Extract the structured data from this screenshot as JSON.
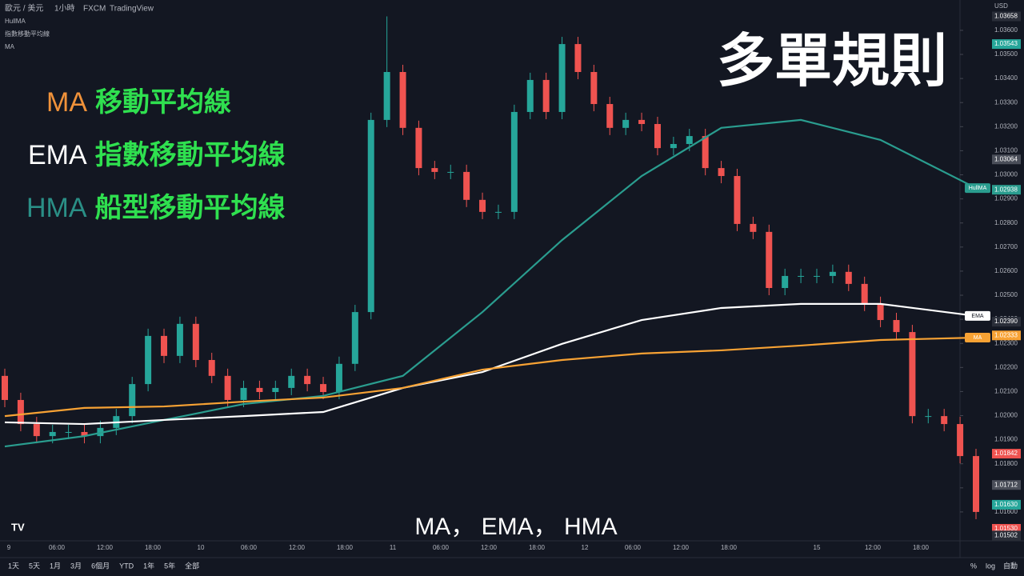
{
  "header": {
    "symbol": "歐元 / 美元",
    "interval": "1小時",
    "broker": "FXCM",
    "source": "TradingView",
    "legends": [
      "HullMA",
      "指數移動平均線",
      "MA"
    ],
    "currency": "USD"
  },
  "overlay": {
    "title": "多單規則",
    "rows": [
      {
        "abbr": "MA",
        "desc": "移動平均線",
        "color": "#f0923a"
      },
      {
        "abbr": "EMA",
        "desc": "指數移動平均線",
        "color": "#ffffff"
      },
      {
        "abbr": "HMA",
        "desc": "船型移動平均線",
        "color": "#2a8f86"
      }
    ],
    "desc_color": "#2fe04f",
    "subtitle": "MA， EMA， HMA"
  },
  "toolbar": {
    "ranges": [
      "1天",
      "5天",
      "1月",
      "3月",
      "6個月",
      "YTD",
      "1年",
      "5年",
      "全部"
    ],
    "options": [
      "%",
      "log",
      "自動"
    ]
  },
  "chart_data": {
    "type": "candlestick",
    "up_color": "#26a69a",
    "down_color": "#ef5350",
    "grid": false,
    "ylim": [
      1.01417,
      1.03726
    ],
    "yticks": [
      {
        "value": 1.016,
        "label": "1.01600"
      },
      {
        "value": 1.017,
        "label": "1.01700"
      },
      {
        "value": 1.018,
        "label": "1.01800"
      },
      {
        "value": 1.019,
        "label": "1.01900"
      },
      {
        "value": 1.02,
        "label": "1.02000"
      },
      {
        "value": 1.021,
        "label": "1.02100"
      },
      {
        "value": 1.022,
        "label": "1.02200"
      },
      {
        "value": 1.023,
        "label": "1.02300"
      },
      {
        "value": 1.024,
        "label": "1.02400"
      },
      {
        "value": 1.025,
        "label": "1.02500"
      },
      {
        "value": 1.026,
        "label": "1.02600"
      },
      {
        "value": 1.027,
        "label": "1.02700"
      },
      {
        "value": 1.028,
        "label": "1.02800"
      },
      {
        "value": 1.029,
        "label": "1.02900"
      },
      {
        "value": 1.03,
        "label": "1.03000"
      },
      {
        "value": 1.031,
        "label": "1.03100"
      },
      {
        "value": 1.032,
        "label": "1.03200"
      },
      {
        "value": 1.033,
        "label": "1.03300"
      },
      {
        "value": 1.034,
        "label": "1.03400"
      },
      {
        "value": 1.035,
        "label": "1.03500"
      },
      {
        "value": 1.036,
        "label": "1.03600"
      }
    ],
    "x_labels": [
      "9",
      "06:00",
      "12:00",
      "18:00",
      "10",
      "06:00",
      "12:00",
      "18:00",
      "11",
      "06:00",
      "12:00",
      "18:00",
      "12",
      "06:00",
      "12:00",
      "18:00",
      "15",
      "12:00",
      "18:00"
    ],
    "open": [
      1.02165,
      1.02065,
      1.01965,
      1.01915,
      1.01932,
      1.01932,
      1.01915,
      1.01949,
      1.01998,
      1.02131,
      1.02331,
      1.02248,
      1.02381,
      1.02231,
      1.02165,
      1.02065,
      1.02115,
      1.02098,
      1.02115,
      1.02165,
      1.02131,
      1.02098,
      1.02215,
      1.0243,
      1.03228,
      1.03427,
      1.03195,
      1.03028,
      1.03012,
      1.03012,
      1.02896,
      1.02846,
      1.02846,
      1.03261,
      1.03394,
      1.03261,
      1.03543,
      1.03427,
      1.03294,
      1.03195,
      1.03228,
      1.03211,
      1.03111,
      1.03128,
      1.03161,
      1.03028,
      1.02995,
      1.02796,
      1.02763,
      1.0253,
      1.0258,
      1.0258,
      1.0258,
      1.02597,
      1.02547,
      1.02464,
      1.02397,
      1.02347,
      1.01998,
      1.01998,
      1.01965,
      1.01832
    ],
    "close": [
      1.02065,
      1.01965,
      1.01915,
      1.01932,
      1.01932,
      1.01915,
      1.01949,
      1.01998,
      1.02131,
      1.02331,
      1.02248,
      1.02381,
      1.02231,
      1.02165,
      1.02065,
      1.02115,
      1.02098,
      1.02115,
      1.02165,
      1.02131,
      1.02098,
      1.02215,
      1.0243,
      1.03228,
      1.03427,
      1.03195,
      1.03028,
      1.03012,
      1.03012,
      1.02896,
      1.02846,
      1.02846,
      1.03261,
      1.03394,
      1.03261,
      1.03543,
      1.03427,
      1.03294,
      1.03195,
      1.03228,
      1.03211,
      1.03111,
      1.03128,
      1.03161,
      1.03028,
      1.02995,
      1.02796,
      1.02763,
      1.0253,
      1.0258,
      1.0258,
      1.0258,
      1.02597,
      1.02547,
      1.02464,
      1.02397,
      1.02347,
      1.01998,
      1.01998,
      1.01965,
      1.01832,
      1.016
    ],
    "high": [
      1.02195,
      1.02095,
      1.01995,
      1.01962,
      1.01962,
      1.01962,
      1.01979,
      1.02028,
      1.02161,
      1.02361,
      1.02361,
      1.02411,
      1.02411,
      1.02261,
      1.02195,
      1.02145,
      1.02145,
      1.02145,
      1.02195,
      1.02195,
      1.02161,
      1.02245,
      1.0246,
      1.03258,
      1.03658,
      1.03457,
      1.03225,
      1.03058,
      1.03042,
      1.03042,
      1.02926,
      1.02876,
      1.03291,
      1.03424,
      1.03424,
      1.03573,
      1.03573,
      1.03457,
      1.03324,
      1.03258,
      1.03258,
      1.03241,
      1.03158,
      1.03191,
      1.03191,
      1.03058,
      1.03025,
      1.02826,
      1.02793,
      1.0261,
      1.0261,
      1.0261,
      1.02627,
      1.02627,
      1.02577,
      1.02494,
      1.02427,
      1.02377,
      1.02028,
      1.02028,
      1.01995,
      1.01862
    ],
    "low": [
      1.02035,
      1.01935,
      1.01885,
      1.01885,
      1.01902,
      1.01885,
      1.01885,
      1.01919,
      1.01968,
      1.02101,
      1.02218,
      1.02218,
      1.02201,
      1.02135,
      1.02035,
      1.02035,
      1.02068,
      1.02068,
      1.02085,
      1.02101,
      1.02068,
      1.02068,
      1.02185,
      1.024,
      1.03198,
      1.03165,
      1.02998,
      1.02982,
      1.02982,
      1.02866,
      1.02816,
      1.02816,
      1.02816,
      1.03231,
      1.03231,
      1.03231,
      1.03397,
      1.03264,
      1.03165,
      1.03165,
      1.03181,
      1.03081,
      1.03081,
      1.03098,
      1.02998,
      1.02965,
      1.02766,
      1.02733,
      1.025,
      1.025,
      1.0255,
      1.0255,
      1.0255,
      1.02517,
      1.02434,
      1.02367,
      1.02317,
      1.01968,
      1.01968,
      1.01935,
      1.01802,
      1.0157
    ],
    "line_x": [
      0,
      5,
      10,
      15,
      20,
      25,
      30,
      35,
      40,
      45,
      50,
      55,
      61
    ],
    "series": [
      {
        "name": "HullMA",
        "color": "#2a9d8f",
        "values": [
          1.01872,
          1.01915,
          1.01982,
          1.02048,
          1.02082,
          1.02165,
          1.0243,
          1.02729,
          1.02995,
          1.03195,
          1.03228,
          1.03145,
          1.02945
        ]
      },
      {
        "name": "EMA",
        "color": "#ffffff",
        "values": [
          1.01972,
          1.01965,
          1.01982,
          1.01998,
          1.02015,
          1.02115,
          1.02181,
          1.02298,
          1.02397,
          1.02447,
          1.02464,
          1.02464,
          1.02414
        ]
      },
      {
        "name": "MA",
        "color": "#f7a234",
        "values": [
          1.01998,
          1.02032,
          1.02038,
          1.02058,
          1.02075,
          1.02115,
          1.02191,
          1.02231,
          1.02258,
          1.02271,
          1.02291,
          1.02314,
          1.02324
        ]
      }
    ],
    "price_tags": [
      {
        "value": 1.03658,
        "label": "1.03658",
        "color": "#2a2e39"
      },
      {
        "value": 1.03543,
        "label": "1.03543",
        "color": "#26a69a"
      },
      {
        "value": 1.03064,
        "label": "1.03064",
        "color": "#4a4e59"
      },
      {
        "value": 1.02938,
        "label": "1.02938",
        "color": "#2a9d8f"
      },
      {
        "value": 1.0239,
        "label": "1.02390",
        "color": "#2a2e39"
      },
      {
        "value": 1.02333,
        "label": "1.02333",
        "color": "#f7a234"
      },
      {
        "value": 1.01842,
        "label": "1.01842",
        "color": "#ef5350"
      },
      {
        "value": 1.01712,
        "label": "1.01712",
        "color": "#4a4e59"
      },
      {
        "value": 1.0163,
        "label": "1.01630",
        "color": "#26a69a"
      },
      {
        "value": 1.0153,
        "label": "1.01530",
        "color": "#ef5350"
      },
      {
        "value": 1.01502,
        "label": "1.01502",
        "color": "#2a2e39"
      }
    ]
  }
}
